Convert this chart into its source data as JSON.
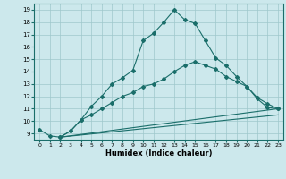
{
  "xlabel": "Humidex (Indice chaleur)",
  "xlim": [
    -0.5,
    23.5
  ],
  "ylim": [
    8.5,
    19.5
  ],
  "xticks": [
    0,
    1,
    2,
    3,
    4,
    5,
    6,
    7,
    8,
    9,
    10,
    11,
    12,
    13,
    14,
    15,
    16,
    17,
    18,
    19,
    20,
    21,
    22,
    23
  ],
  "yticks": [
    9,
    10,
    11,
    12,
    13,
    14,
    15,
    16,
    17,
    18,
    19
  ],
  "background_color": "#cce8ec",
  "grid_color": "#9fc8cc",
  "line_color": "#1a6e6a",
  "lines": [
    {
      "x": [
        0,
        1,
        2,
        3,
        4,
        5,
        6,
        7,
        8,
        9,
        10,
        11,
        12,
        13,
        14,
        15,
        16,
        17,
        18,
        19,
        20,
        21,
        22,
        23
      ],
      "y": [
        9.3,
        8.8,
        8.7,
        9.2,
        10.1,
        11.2,
        12.0,
        13.0,
        13.5,
        14.1,
        16.5,
        17.1,
        18.0,
        19.0,
        18.2,
        17.9,
        16.5,
        15.1,
        14.5,
        13.6,
        12.8,
        11.8,
        11.1,
        11.0
      ],
      "markers": true
    },
    {
      "x": [
        2,
        3,
        4,
        5,
        6,
        7,
        8,
        9,
        10,
        11,
        12,
        13,
        14,
        15,
        16,
        17,
        18,
        19,
        20,
        21,
        22,
        23
      ],
      "y": [
        8.7,
        9.2,
        10.1,
        10.5,
        11.0,
        11.5,
        12.0,
        12.3,
        12.8,
        13.0,
        13.4,
        14.0,
        14.5,
        14.8,
        14.5,
        14.2,
        13.6,
        13.2,
        12.8,
        11.9,
        11.4,
        11.0
      ],
      "markers": true
    },
    {
      "x": [
        2,
        23
      ],
      "y": [
        8.7,
        11.0
      ],
      "markers": false
    },
    {
      "x": [
        2,
        23
      ],
      "y": [
        8.7,
        10.5
      ],
      "markers": false
    }
  ]
}
